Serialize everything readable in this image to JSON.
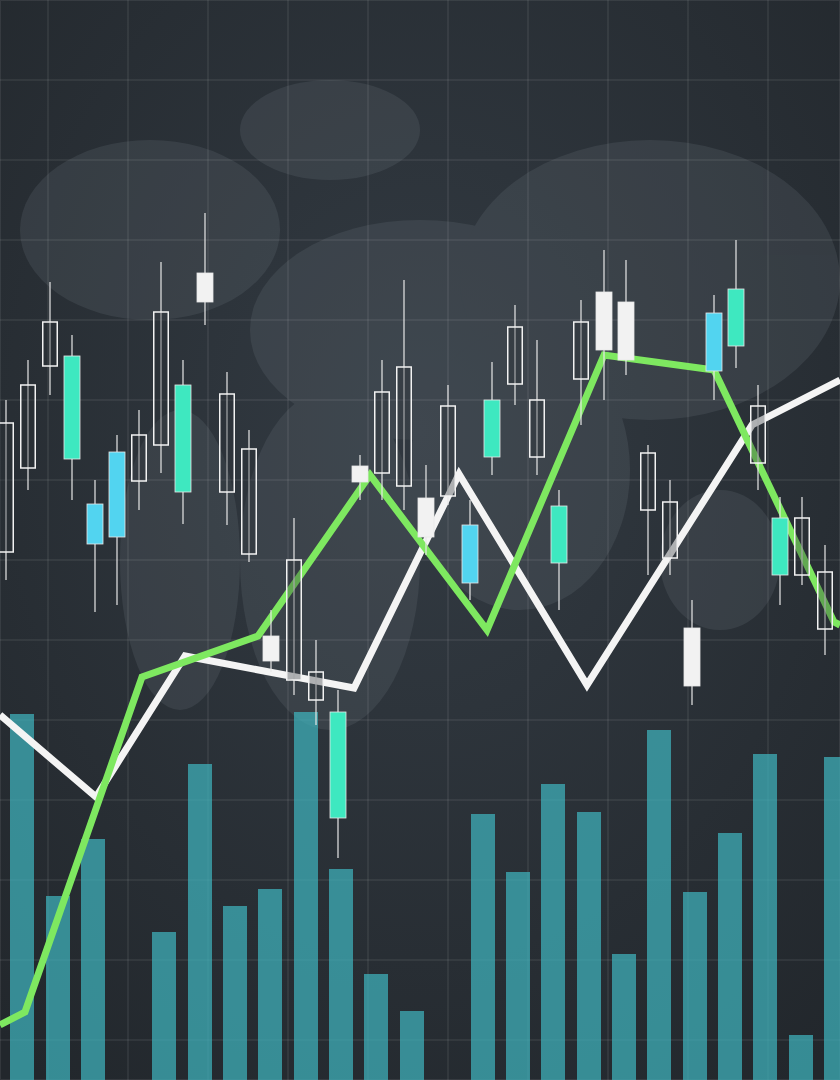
{
  "chart_data": {
    "type": "candlestick",
    "tick_labels": false,
    "grid": true,
    "xlim": [
      0,
      84
    ],
    "ylim": [
      0,
      108
    ],
    "xticks": [
      4.8,
      12.8,
      20.8,
      28.8,
      36.8,
      44.8,
      52.8,
      60.8,
      68.8,
      76.8
    ],
    "yticks": [
      4,
      12,
      20,
      28,
      36,
      44,
      52,
      60,
      68,
      76,
      84,
      92,
      100
    ],
    "series": [
      {
        "type": "bar",
        "color": "#3fb3bd",
        "x": [
          2.2,
          5.8,
          9.3,
          16.4,
          20,
          23.5,
          27,
          30.6,
          34.1,
          37.6,
          41.2,
          48.3,
          51.8,
          55.3,
          58.9,
          62.4,
          65.9,
          69.5,
          73,
          76.5,
          80.1,
          83.6
        ],
        "values": [
          36.6,
          18.4,
          24.1,
          14.8,
          31.6,
          17.4,
          19.1,
          36.8,
          21.1,
          10.6,
          6.9,
          26.6,
          20.8,
          29.6,
          26.8,
          12.6,
          35,
          18.8,
          24.7,
          32.6,
          4.5,
          32.3
        ]
      },
      {
        "type": "line",
        "color": "#f4f4f4",
        "x": [
          0,
          9.6,
          18.5,
          35.4,
          45.9,
          58.7,
          75.2,
          84
        ],
        "values": [
          36.5,
          28.3,
          42.4,
          39.2,
          60.6,
          39.5,
          65.5,
          70
        ]
      },
      {
        "type": "line",
        "color": "#7ee860",
        "x": [
          0,
          2.5,
          14.2,
          25.8,
          37,
          48.7,
          60.4,
          71.4,
          83.4,
          84
        ],
        "values": [
          5.5,
          6.8,
          40.3,
          44.4,
          60.5,
          45,
          72.5,
          71,
          45.8,
          45.5
        ]
      },
      {
        "type": "candlestick",
        "x": [
          0.6,
          2.8,
          5.0,
          7.2,
          9.5,
          11.7,
          13.9,
          16.1,
          18.3,
          20.5,
          22.7,
          24.9,
          27.1,
          29.4,
          31.6,
          33.8,
          36.0,
          38.2,
          40.4,
          42.6,
          44.8,
          47.0,
          49.2,
          51.5,
          53.7,
          55.9,
          58.1,
          60.4,
          62.6,
          64.8,
          67.0,
          69.2,
          71.4,
          73.6,
          75.8,
          78.0,
          80.2,
          82.5
        ],
        "open": [
          52.8,
          61.2,
          71.4,
          72.4,
          57.6,
          62.8,
          59.9,
          63.5,
          69.5,
          80.7,
          58.8,
          52.6,
          44.4,
          40,
          38,
          36.8,
          61.4,
          60.7,
          59.4,
          58.2,
          58.4,
          55.5,
          68,
          69.6,
          62.3,
          57.4,
          70.1,
          78.8,
          77.8,
          57,
          52.2,
          45.2,
          76.7,
          79.1,
          61.7,
          56.2,
          50.5,
          45.1
        ],
        "high": [
          68,
          72,
          79.8,
          74.5,
          60,
          64.5,
          67,
          81.8,
          72,
          86.7,
          70.8,
          65,
          47,
          56.2,
          44,
          39,
          62.5,
          72,
          80,
          61.5,
          69.5,
          58,
          71.8,
          77.5,
          74,
          59,
          78,
          83,
          82,
          63.5,
          60,
          48,
          78.5,
          84,
          69.5,
          58.3,
          58.3,
          53.5
        ],
        "low": [
          50,
          59,
          68.5,
          58,
          46.8,
          47.5,
          57,
          60.7,
          55.6,
          75.5,
          55.5,
          51.8,
          40.8,
          38.5,
          35.5,
          22.2,
          58,
          58,
          57,
          52.5,
          57.5,
          48,
          60.5,
          67.5,
          60.5,
          47,
          65.5,
          68,
          70.5,
          50.5,
          50.5,
          37.5,
          68,
          71.2,
          59,
          47.5,
          49.5,
          42.5
        ],
        "close": [
          65.7,
          69.5,
          75.8,
          62.1,
          53.6,
          54.3,
          64.5,
          76.8,
          58.8,
          77.8,
          68.6,
          63.1,
          41.9,
          52,
          40.8,
          26.2,
          59.8,
          68.8,
          71.3,
          54.3,
          67.4,
          49.7,
          62.3,
          75.3,
          68,
          51.7,
          75.8,
          73,
          72,
          62.7,
          57.8,
          39.4,
          70.9,
          73.4,
          67.4,
          50.5,
          56.2,
          50.8
        ],
        "colors": [
          "#f2f2f2",
          "#f2f2f2",
          "#f2f2f2",
          "#3ee8c0",
          "#52d4f0",
          "#52d4f0",
          "#f2f2f2",
          "#f2f2f2",
          "#3ee8c0",
          "#f2f2f2",
          "#f2f2f2",
          "#f2f2f2",
          "#f2f2f2",
          "#f2f2f2",
          "#f2f2f2",
          "#3ee8c0",
          "#f2f2f2",
          "#f2f2f2",
          "#f2f2f2",
          "#f2f2f2",
          "#f2f2f2",
          "#52d4f0",
          "#3ee8c0",
          "#f2f2f2",
          "#f2f2f2",
          "#3ee8c0",
          "#f2f2f2",
          "#f2f2f2",
          "#f2f2f2",
          "#f2f2f2",
          "#f2f2f2",
          "#f2f2f2",
          "#52d4f0",
          "#3ee8c0",
          "#f2f2f2",
          "#3ee8c0",
          "#f2f2f2",
          "#f2f2f2"
        ]
      }
    ]
  }
}
